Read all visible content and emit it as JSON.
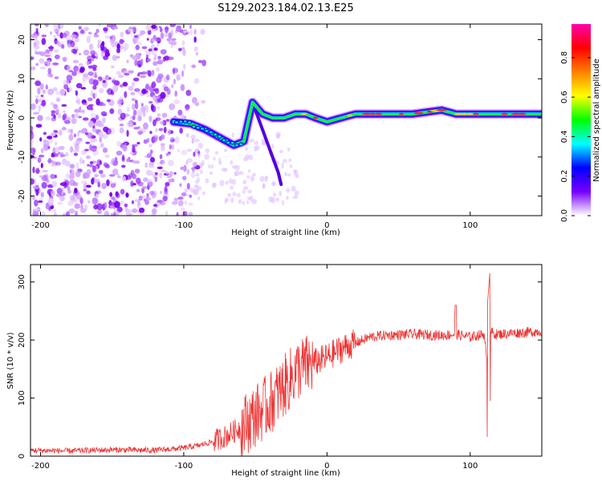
{
  "title": "S129.2023.184.02.13.E25",
  "chart_data": [
    {
      "type": "heatmap",
      "title": "S129.2023.184.02.13.E25",
      "xlabel": "Height of straight line (km)",
      "ylabel": "Frequency (Hz)",
      "xlim": [
        -207,
        150
      ],
      "ylim": [
        -25,
        24
      ],
      "xticks": [
        -200,
        -100,
        0,
        100
      ],
      "yticks": [
        -20,
        -10,
        0,
        10,
        20
      ],
      "colorbar": {
        "label": "Normalized spectral amplitude",
        "range": [
          0,
          0.97
        ],
        "ticks": [
          "0.0",
          "0.2",
          "0.4",
          "0.6",
          "0.8"
        ],
        "colors": [
          "#ffffff",
          "#7700ff",
          "#0000ff",
          "#00ffff",
          "#00ff00",
          "#ffff00",
          "#ff8000",
          "#ff0000",
          "#ff00aa"
        ]
      },
      "ridge": {
        "description": "dominant frequency track",
        "x": [
          -107,
          -95,
          -85,
          -75,
          -65,
          -58,
          -52,
          -45,
          -38,
          -30,
          -22,
          -15,
          -8,
          0,
          10,
          20,
          40,
          60,
          80,
          90,
          100,
          110,
          120,
          150
        ],
        "y": [
          -1,
          -1.5,
          -3,
          -5,
          -7,
          -6,
          4,
          1,
          0,
          0,
          1,
          1,
          0,
          -1,
          0,
          1,
          1,
          1,
          2,
          1,
          1,
          1,
          1,
          1
        ]
      }
    },
    {
      "type": "line",
      "xlabel": "Height of straight line (km)",
      "ylabel": "SNR (10 * v/v)",
      "xlim": [
        -207,
        150
      ],
      "ylim": [
        0,
        330
      ],
      "xticks": [
        -200,
        -100,
        0,
        100
      ],
      "yticks": [
        0,
        100,
        200,
        300
      ],
      "color": "#ee3333",
      "series": [
        {
          "name": "SNR",
          "x": [
            -207,
            -180,
            -150,
            -120,
            -100,
            -90,
            -80,
            -70,
            -60,
            -50,
            -40,
            -30,
            -20,
            -10,
            0,
            10,
            20,
            30,
            40,
            60,
            80,
            90,
            100,
            105,
            110,
            112,
            114,
            116,
            118,
            120,
            130,
            150
          ],
          "y": [
            10,
            9,
            11,
            10,
            14,
            18,
            25,
            35,
            50,
            70,
            90,
            120,
            150,
            160,
            170,
            185,
            195,
            205,
            208,
            210,
            208,
            210,
            205,
            208,
            210,
            150,
            215,
            212,
            210,
            210,
            212,
            215
          ]
        }
      ]
    }
  ]
}
